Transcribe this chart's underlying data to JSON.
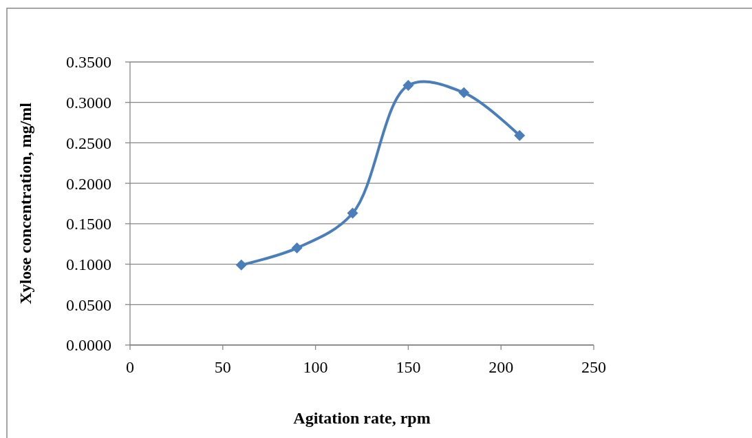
{
  "chart_data": {
    "type": "line",
    "xlabel": "Agitation rate, rpm",
    "ylabel": "Xylose concentration, mg/ml",
    "x": [
      60,
      90,
      120,
      150,
      180,
      210
    ],
    "series": [
      {
        "color": "#4a7ebb",
        "values": [
          0.099,
          0.12,
          0.163,
          0.321,
          0.312,
          0.259
        ]
      }
    ],
    "xlim": [
      0,
      250
    ],
    "xticks": [
      0,
      50,
      100,
      150,
      200,
      250
    ],
    "ylim": [
      0,
      0.35
    ],
    "yticks": [
      {
        "value": 0,
        "label": "0.0000"
      },
      {
        "value": 0.05,
        "label": "0.0500"
      },
      {
        "value": 0.1,
        "label": "0.1000"
      },
      {
        "value": 0.15,
        "label": "0.1500"
      },
      {
        "value": 0.2,
        "label": "0.2000"
      },
      {
        "value": 0.25,
        "label": "0.2500"
      },
      {
        "value": 0.3,
        "label": "0.3000"
      },
      {
        "value": 0.35,
        "label": "0.3500"
      }
    ],
    "grid": "y",
    "marker": "diamond",
    "line_style": "solid"
  }
}
